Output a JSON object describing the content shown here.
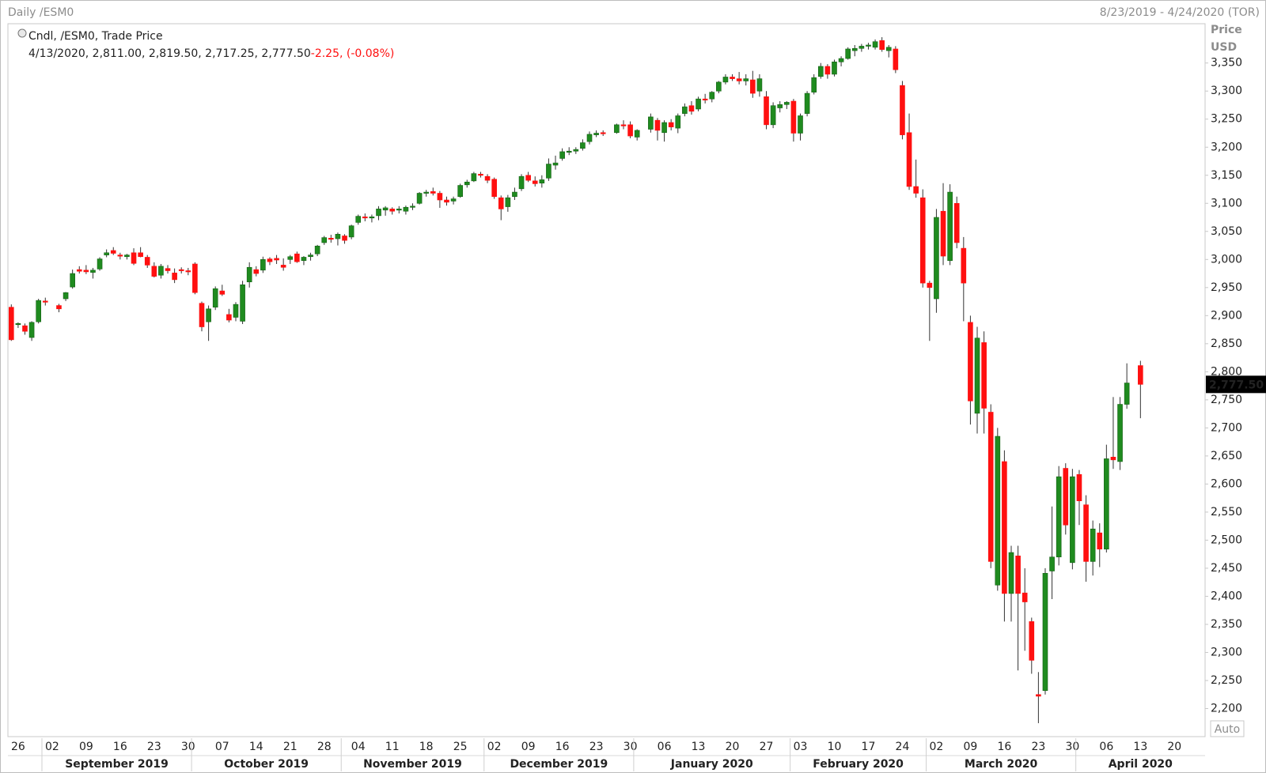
{
  "header_left": "Daily /ESM0",
  "header_right": "8/23/2019 - 4/24/2020 (TOR)",
  "auto_button": "Auto",
  "chart_data": {
    "type": "candlestick",
    "legend_title": "Cndl, /ESM0, Trade Price",
    "info_values": "4/13/2020, 2,811.00, 2,819.50, 2,717.25, 2,777.50",
    "info_change": "-2.25, (-0.08%)",
    "axis_title": "Price",
    "axis_unit": "USD",
    "last_label": "2,777.50",
    "up_color": "#1f8b1f",
    "down_color": "#ff1010",
    "wick_color": "#333333",
    "grid": false,
    "ylim": [
      2150,
      3420
    ],
    "yticks": [
      {
        "value": 2200,
        "label": "2,200"
      },
      {
        "value": 2250,
        "label": "2,250"
      },
      {
        "value": 2300,
        "label": "2,300"
      },
      {
        "value": 2350,
        "label": "2,350"
      },
      {
        "value": 2400,
        "label": "2,400"
      },
      {
        "value": 2450,
        "label": "2,450"
      },
      {
        "value": 2500,
        "label": "2,500"
      },
      {
        "value": 2550,
        "label": "2,550"
      },
      {
        "value": 2600,
        "label": "2,600"
      },
      {
        "value": 2650,
        "label": "2,650"
      },
      {
        "value": 2700,
        "label": "2,700"
      },
      {
        "value": 2750,
        "label": "2,750"
      },
      {
        "value": 2800,
        "label": "2,800"
      },
      {
        "value": 2850,
        "label": "2,850"
      },
      {
        "value": 2900,
        "label": "2,900"
      },
      {
        "value": 2950,
        "label": "2,950"
      },
      {
        "value": 3000,
        "label": "3,000"
      },
      {
        "value": 3050,
        "label": "3,050"
      },
      {
        "value": 3100,
        "label": "3,100"
      },
      {
        "value": 3150,
        "label": "3,150"
      },
      {
        "value": 3200,
        "label": "3,200"
      },
      {
        "value": 3250,
        "label": "3,250"
      },
      {
        "value": 3300,
        "label": "3,300"
      },
      {
        "value": 3350,
        "label": "3,350"
      }
    ],
    "months": [
      "September 2019",
      "October 2019",
      "November 2019",
      "December 2019",
      "January 2020",
      "February 2020",
      "March 2020",
      "April 2020"
    ],
    "categories": [
      null,
      "26",
      null,
      null,
      null,
      null,
      "02",
      null,
      null,
      null,
      null,
      "09",
      null,
      null,
      null,
      null,
      "16",
      null,
      null,
      null,
      null,
      "23",
      null,
      null,
      null,
      null,
      "30",
      null,
      null,
      null,
      null,
      "07",
      null,
      null,
      null,
      null,
      "14",
      null,
      null,
      null,
      null,
      "21",
      null,
      null,
      null,
      null,
      "28",
      null,
      null,
      null,
      null,
      "04",
      null,
      null,
      null,
      null,
      "11",
      null,
      null,
      null,
      null,
      "18",
      null,
      null,
      null,
      null,
      "25",
      null,
      null,
      null,
      null,
      "02",
      null,
      null,
      null,
      null,
      "09",
      null,
      null,
      null,
      null,
      "16",
      null,
      null,
      null,
      null,
      "23",
      null,
      null,
      null,
      null,
      "30",
      null,
      null,
      null,
      null,
      "06",
      null,
      null,
      null,
      null,
      "13",
      null,
      null,
      null,
      null,
      "20",
      null,
      null,
      null,
      null,
      "27",
      null,
      null,
      null,
      null,
      "03",
      null,
      null,
      null,
      null,
      "10",
      null,
      null,
      null,
      null,
      "17",
      null,
      null,
      null,
      null,
      "24",
      null,
      null,
      null,
      null,
      "02",
      null,
      null,
      null,
      null,
      "09",
      null,
      null,
      null,
      null,
      "16",
      null,
      null,
      null,
      null,
      "23",
      null,
      null,
      null,
      null,
      "30",
      null,
      null,
      null,
      null,
      "06",
      null,
      null,
      null,
      null,
      "13",
      null,
      null,
      null,
      null,
      "20",
      null,
      null,
      null,
      null
    ],
    "ohlc": [
      [
        2915,
        2920,
        2855,
        2857
      ],
      [
        2884,
        2888,
        2878,
        2886
      ],
      [
        2882,
        2886,
        2866,
        2872
      ],
      [
        2861,
        2890,
        2855,
        2888
      ],
      [
        2889,
        2930,
        2886,
        2927
      ],
      [
        2926,
        2932,
        2918,
        2925
      ],
      null,
      [
        2918,
        2921,
        2906,
        2912
      ],
      [
        2930,
        2942,
        2926,
        2941
      ],
      [
        2951,
        2982,
        2948,
        2975
      ],
      [
        2982,
        2988,
        2975,
        2979
      ],
      [
        2981,
        2990,
        2974,
        2978
      ],
      [
        2977,
        2985,
        2966,
        2981
      ],
      [
        2983,
        3004,
        2980,
        3001
      ],
      [
        3008,
        3018,
        3004,
        3012
      ],
      [
        3016,
        3022,
        3008,
        3011
      ],
      [
        3008,
        3012,
        3000,
        3006
      ],
      [
        3005,
        3010,
        3000,
        3008
      ],
      [
        3012,
        3020,
        2990,
        2993
      ],
      [
        3012,
        3022,
        3004,
        3005
      ],
      [
        3004,
        3008,
        2985,
        2990
      ],
      [
        2988,
        2995,
        2968,
        2970
      ],
      [
        2972,
        2992,
        2966,
        2988
      ],
      [
        2984,
        2990,
        2975,
        2980
      ],
      [
        2976,
        2984,
        2958,
        2964
      ],
      [
        2982,
        2986,
        2975,
        2980
      ],
      [
        2980,
        2985,
        2972,
        2978
      ],
      [
        2992,
        2995,
        2938,
        2941
      ],
      [
        2922,
        2925,
        2872,
        2880
      ],
      [
        2889,
        2918,
        2855,
        2912
      ],
      [
        2915,
        2952,
        2910,
        2948
      ],
      [
        2944,
        2955,
        2935,
        2938
      ],
      [
        2902,
        2912,
        2888,
        2892
      ],
      [
        2897,
        2924,
        2890,
        2920
      ],
      [
        2890,
        2962,
        2885,
        2955
      ],
      [
        2960,
        2995,
        2950,
        2986
      ],
      [
        2982,
        2988,
        2970,
        2975
      ],
      [
        2981,
        3005,
        2976,
        3000
      ],
      [
        3001,
        3004,
        2990,
        2996
      ],
      [
        3002,
        3008,
        2992,
        2999
      ],
      [
        2990,
        3002,
        2980,
        2986
      ],
      [
        3000,
        3008,
        2992,
        3005
      ],
      [
        3010,
        3014,
        2994,
        2996
      ],
      [
        2998,
        3006,
        2990,
        3004
      ],
      [
        3005,
        3012,
        2998,
        3008
      ],
      [
        3010,
        3026,
        3006,
        3024
      ],
      [
        3030,
        3042,
        3026,
        3039
      ],
      [
        3038,
        3044,
        3030,
        3036
      ],
      [
        3037,
        3048,
        3025,
        3045
      ],
      [
        3042,
        3045,
        3028,
        3034
      ],
      [
        3040,
        3062,
        3036,
        3060
      ],
      [
        3066,
        3080,
        3062,
        3077
      ],
      [
        3076,
        3082,
        3068,
        3075
      ],
      [
        3074,
        3080,
        3066,
        3076
      ],
      [
        3078,
        3095,
        3070,
        3090
      ],
      [
        3088,
        3095,
        3078,
        3092
      ],
      [
        3090,
        3093,
        3080,
        3086
      ],
      [
        3088,
        3095,
        3082,
        3090
      ],
      [
        3086,
        3096,
        3080,
        3093
      ],
      [
        3094,
        3100,
        3088,
        3095
      ],
      [
        3100,
        3120,
        3098,
        3118
      ],
      [
        3118,
        3124,
        3112,
        3120
      ],
      [
        3121,
        3128,
        3114,
        3118
      ],
      [
        3118,
        3122,
        3092,
        3106
      ],
      [
        3106,
        3112,
        3096,
        3102
      ],
      [
        3104,
        3112,
        3098,
        3108
      ],
      [
        3112,
        3135,
        3110,
        3132
      ],
      [
        3133,
        3142,
        3128,
        3138
      ],
      [
        3140,
        3156,
        3138,
        3153
      ],
      [
        3152,
        3156,
        3146,
        3150
      ],
      [
        3148,
        3152,
        3136,
        3141
      ],
      [
        3143,
        3146,
        3108,
        3112
      ],
      [
        3110,
        3114,
        3070,
        3090
      ],
      [
        3094,
        3115,
        3085,
        3110
      ],
      [
        3112,
        3128,
        3106,
        3120
      ],
      [
        3126,
        3152,
        3122,
        3148
      ],
      [
        3150,
        3156,
        3138,
        3141
      ],
      [
        3140,
        3148,
        3130,
        3135
      ],
      [
        3136,
        3150,
        3128,
        3142
      ],
      [
        3145,
        3180,
        3140,
        3170
      ],
      [
        3168,
        3185,
        3160,
        3172
      ],
      [
        3180,
        3198,
        3176,
        3192
      ],
      [
        3192,
        3200,
        3186,
        3193
      ],
      [
        3193,
        3200,
        3188,
        3196
      ],
      [
        3198,
        3214,
        3194,
        3208
      ],
      [
        3210,
        3228,
        3205,
        3223
      ],
      [
        3222,
        3230,
        3218,
        3225
      ],
      [
        3226,
        3230,
        3220,
        3224
      ],
      null,
      [
        3226,
        3242,
        3224,
        3240
      ],
      [
        3240,
        3248,
        3232,
        3238
      ],
      [
        3240,
        3246,
        3216,
        3220
      ],
      [
        3218,
        3232,
        3212,
        3230
      ],
      null,
      [
        3232,
        3260,
        3226,
        3254
      ],
      [
        3248,
        3252,
        3212,
        3230
      ],
      [
        3226,
        3248,
        3210,
        3244
      ],
      [
        3244,
        3250,
        3230,
        3236
      ],
      [
        3234,
        3260,
        3225,
        3256
      ],
      [
        3260,
        3278,
        3255,
        3272
      ],
      [
        3274,
        3282,
        3258,
        3264
      ],
      [
        3268,
        3290,
        3264,
        3286
      ],
      [
        3286,
        3295,
        3278,
        3284
      ],
      [
        3286,
        3300,
        3280,
        3298
      ],
      [
        3300,
        3318,
        3296,
        3316
      ],
      [
        3316,
        3330,
        3312,
        3325
      ],
      [
        3325,
        3330,
        3318,
        3322
      ],
      [
        3322,
        3334,
        3312,
        3318
      ],
      [
        3318,
        3330,
        3310,
        3322
      ],
      [
        3320,
        3336,
        3288,
        3296
      ],
      [
        3300,
        3330,
        3290,
        3322
      ],
      [
        3290,
        3300,
        3232,
        3240
      ],
      [
        3240,
        3280,
        3234,
        3274
      ],
      [
        3270,
        3282,
        3262,
        3276
      ],
      [
        3276,
        3282,
        3268,
        3280
      ],
      [
        3282,
        3286,
        3210,
        3225
      ],
      [
        3225,
        3260,
        3212,
        3256
      ],
      [
        3260,
        3300,
        3255,
        3296
      ],
      [
        3298,
        3330,
        3294,
        3324
      ],
      [
        3326,
        3350,
        3322,
        3344
      ],
      [
        3344,
        3348,
        3322,
        3330
      ],
      [
        3330,
        3356,
        3326,
        3352
      ],
      [
        3352,
        3362,
        3344,
        3358
      ],
      [
        3358,
        3378,
        3356,
        3375
      ],
      [
        3372,
        3382,
        3362,
        3376
      ],
      [
        3376,
        3384,
        3370,
        3380
      ],
      [
        3380,
        3386,
        3374,
        3382
      ],
      [
        3378,
        3392,
        3374,
        3388
      ],
      [
        3390,
        3396,
        3370,
        3374
      ],
      [
        3372,
        3382,
        3360,
        3378
      ],
      [
        3375,
        3380,
        3332,
        3338
      ],
      [
        3310,
        3318,
        3214,
        3222
      ],
      [
        3226,
        3260,
        3124,
        3130
      ],
      [
        3130,
        3178,
        3110,
        3118
      ],
      [
        3110,
        3125,
        2950,
        2958
      ],
      [
        2958,
        2962,
        2855,
        2950
      ],
      [
        2930,
        3090,
        2905,
        3075
      ],
      [
        3086,
        3136,
        2990,
        3006
      ],
      [
        2998,
        3134,
        2990,
        3120
      ],
      [
        3100,
        3112,
        3020,
        3030
      ],
      [
        3020,
        3040,
        2890,
        2958
      ],
      [
        2888,
        2900,
        2706,
        2748
      ],
      [
        2726,
        2880,
        2690,
        2860
      ],
      [
        2852,
        2872,
        2690,
        2735
      ],
      [
        2728,
        2742,
        2450,
        2462
      ],
      [
        2420,
        2700,
        2410,
        2685
      ],
      [
        2640,
        2660,
        2355,
        2405
      ],
      [
        2405,
        2490,
        2355,
        2478
      ],
      [
        2472,
        2490,
        2268,
        2405
      ],
      [
        2406,
        2450,
        2303,
        2390
      ],
      [
        2355,
        2362,
        2262,
        2286
      ],
      [
        2225,
        2265,
        2174,
        2222
      ],
      [
        2232,
        2450,
        2225,
        2441
      ],
      [
        2445,
        2560,
        2395,
        2470
      ],
      [
        2470,
        2632,
        2455,
        2613
      ],
      [
        2628,
        2637,
        2510,
        2527
      ],
      [
        2460,
        2627,
        2448,
        2613
      ],
      [
        2617,
        2625,
        2527,
        2570
      ],
      [
        2563,
        2580,
        2426,
        2462
      ],
      [
        2462,
        2535,
        2437,
        2520
      ],
      [
        2513,
        2530,
        2452,
        2484
      ],
      [
        2484,
        2670,
        2478,
        2645
      ],
      [
        2648,
        2755,
        2627,
        2643
      ],
      [
        2640,
        2755,
        2625,
        2742
      ],
      [
        2742,
        2815,
        2734,
        2780
      ],
      null,
      [
        2811,
        2819.5,
        2717.25,
        2777.5
      ],
      null,
      null,
      null,
      null,
      null,
      null,
      null,
      null,
      null
    ]
  }
}
